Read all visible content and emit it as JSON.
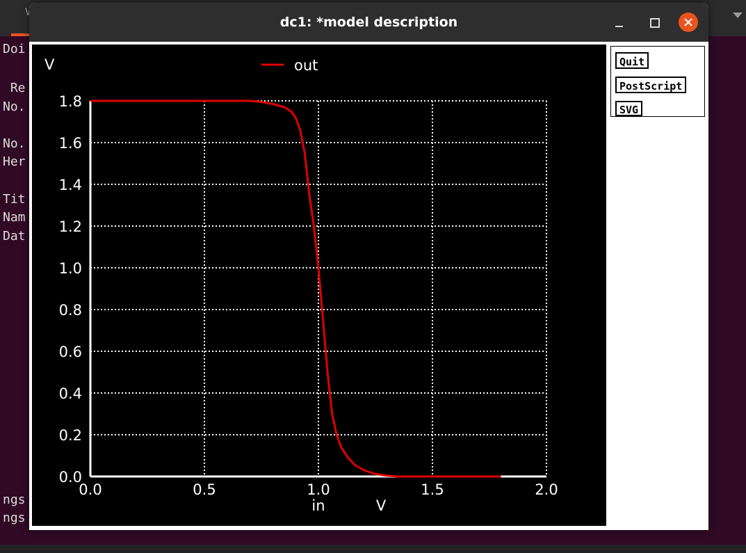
{
  "terminal": {
    "tab_fragment": "V",
    "lines": [
      {
        "text": "Doi"
      },
      {
        "text": " Re"
      },
      {
        "text": "No."
      },
      {
        "text": "No."
      },
      {
        "text": "Her"
      },
      {
        "text": "Tit"
      },
      {
        "text": "Nam"
      },
      {
        "text": "Dat"
      },
      {
        "text": "ngs"
      },
      {
        "text": "ngs"
      }
    ]
  },
  "window": {
    "title": "dc1: *model description",
    "controls": [
      "minimize",
      "maximize",
      "close"
    ]
  },
  "buttons": {
    "quit": "Quit",
    "postscript": "PostScript",
    "svg": "SVG"
  },
  "chart_data": {
    "type": "line",
    "title": "",
    "legend": "out",
    "xlabel": "in",
    "xunit": "V",
    "ylabel": "V",
    "xlim": [
      0,
      2.0
    ],
    "ylim": [
      0,
      1.8
    ],
    "xticks": [
      "0.0",
      "0.5",
      "1.0",
      "1.5",
      "2.0"
    ],
    "yticks": [
      "0.0",
      "0.2",
      "0.4",
      "0.6",
      "0.8",
      "1.0",
      "1.2",
      "1.4",
      "1.6",
      "1.8"
    ],
    "grid": true,
    "series": [
      {
        "name": "out",
        "color": "#e00000",
        "x": [
          0.0,
          0.6,
          0.7,
          0.75,
          0.8,
          0.85,
          0.88,
          0.9,
          0.92,
          0.94,
          0.95,
          0.96,
          0.98,
          1.0,
          1.02,
          1.04,
          1.06,
          1.08,
          1.1,
          1.13,
          1.16,
          1.2,
          1.25,
          1.3,
          1.35,
          1.5,
          1.8
        ],
        "y": [
          1.8,
          1.8,
          1.8,
          1.795,
          1.785,
          1.77,
          1.75,
          1.72,
          1.66,
          1.55,
          1.45,
          1.35,
          1.2,
          1.0,
          0.75,
          0.5,
          0.3,
          0.2,
          0.14,
          0.09,
          0.055,
          0.03,
          0.012,
          0.004,
          0.0,
          0.0,
          0.0
        ]
      }
    ]
  }
}
